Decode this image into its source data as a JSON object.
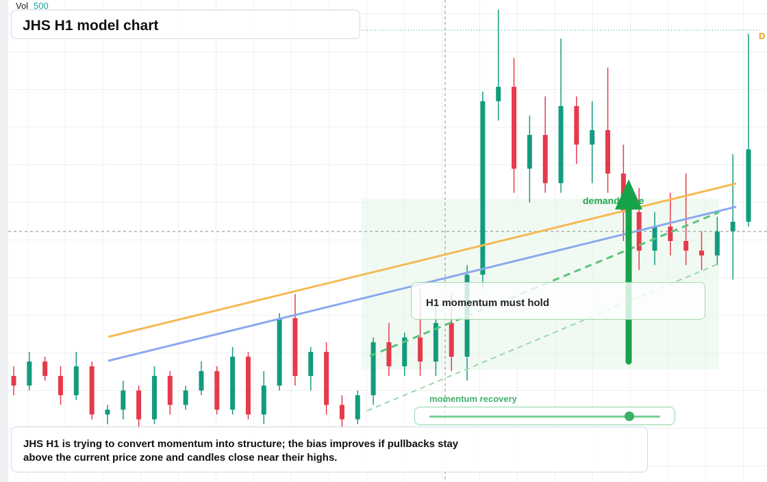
{
  "chart_data": {
    "type": "candlestick",
    "title": "JHS H1 model chart",
    "volume_label": "Vol",
    "volume_value": 500,
    "price_flag": "D",
    "up_color": "#139b7f",
    "down_color": "#e53a4b",
    "ylim": [
      0,
      100
    ],
    "open": [
      22,
      20,
      25,
      22,
      18,
      24,
      14,
      15,
      19,
      13,
      22,
      16,
      19,
      23,
      15,
      26,
      14,
      20,
      34,
      22,
      27,
      16,
      13,
      18,
      29,
      24,
      30,
      25,
      33,
      26,
      43,
      79,
      82,
      65,
      72,
      62,
      78,
      70,
      73,
      64,
      56,
      48,
      53,
      50,
      48,
      47,
      52,
      54
    ],
    "high": [
      24,
      27,
      26,
      24,
      27,
      25,
      16,
      21,
      20,
      24,
      23,
      20,
      25,
      24,
      28,
      27,
      23,
      35,
      39,
      28,
      29,
      18,
      19,
      30,
      33,
      31,
      40,
      37,
      39,
      45,
      81,
      98,
      88,
      76,
      80,
      92,
      80,
      79,
      86,
      70,
      61,
      56,
      60,
      64,
      52,
      55,
      68,
      93
    ],
    "low": [
      18,
      19,
      21,
      16,
      17,
      13,
      12,
      13,
      11,
      12,
      14,
      15,
      18,
      14,
      14,
      13,
      12,
      19,
      20,
      19,
      14,
      11,
      12,
      16,
      22,
      22,
      22,
      22,
      23,
      21,
      40,
      75,
      60,
      58,
      60,
      60,
      66,
      62,
      60,
      50,
      44,
      45,
      47,
      45,
      44,
      45,
      42,
      53
    ],
    "close": [
      20,
      25,
      22,
      18,
      24,
      14,
      15,
      19,
      13,
      22,
      16,
      19,
      23,
      15,
      26,
      14,
      20,
      34,
      22,
      27,
      16,
      13,
      18,
      29,
      24,
      30,
      25,
      33,
      26,
      43,
      79,
      82,
      65,
      72,
      62,
      78,
      70,
      73,
      64,
      56,
      48,
      53,
      50,
      48,
      47,
      52,
      54,
      69
    ],
    "annotations": {
      "zone": "demand zone",
      "hold": "H1 momentum must hold",
      "recovery": "momentum recovery",
      "note": "JHS H1 is trying to convert momentum into structure; the bias improves if pullbacks stay above the current price zone and candles close near their highs."
    }
  }
}
